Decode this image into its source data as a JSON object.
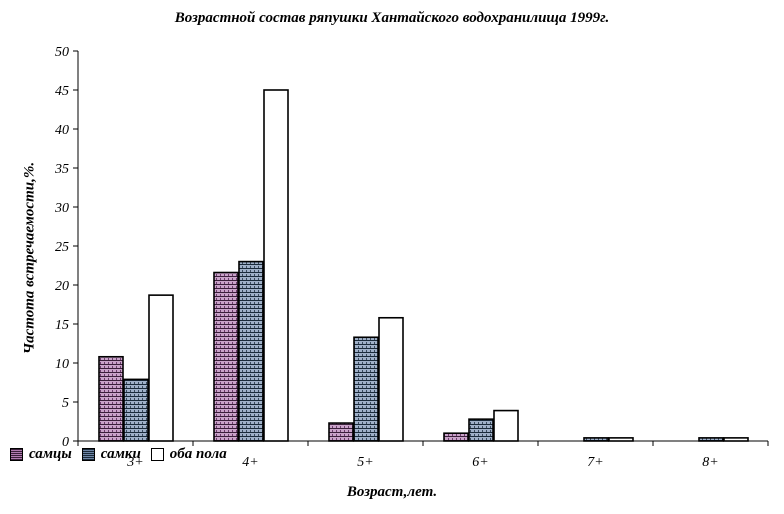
{
  "chart_data": {
    "type": "bar",
    "title": "Возрастной состав ряпушки Хантайского водохранилища 1999г.",
    "xlabel": "Возраст,лет.",
    "ylabel": "Частота встречаемости,%.",
    "categories": [
      "3+",
      "4+",
      "5+",
      "6+",
      "7+",
      "8+"
    ],
    "ylim": [
      0,
      50
    ],
    "yticks": [
      0,
      5,
      10,
      15,
      20,
      25,
      30,
      35,
      40,
      45,
      50
    ],
    "grid": false,
    "legend_position": "bottom-left",
    "series": [
      {
        "name": "самцы",
        "values": [
          10.8,
          21.6,
          2.3,
          1.0,
          0.0,
          0.0
        ],
        "color": "#8e5a8e"
      },
      {
        "name": "самки",
        "values": [
          7.9,
          23.0,
          13.3,
          2.8,
          0.4,
          0.4
        ],
        "color": "#5a6f8e"
      },
      {
        "name": "оба пола",
        "values": [
          18.7,
          45.0,
          15.8,
          3.9,
          0.4,
          0.4
        ],
        "color": "#ffffff"
      }
    ]
  }
}
